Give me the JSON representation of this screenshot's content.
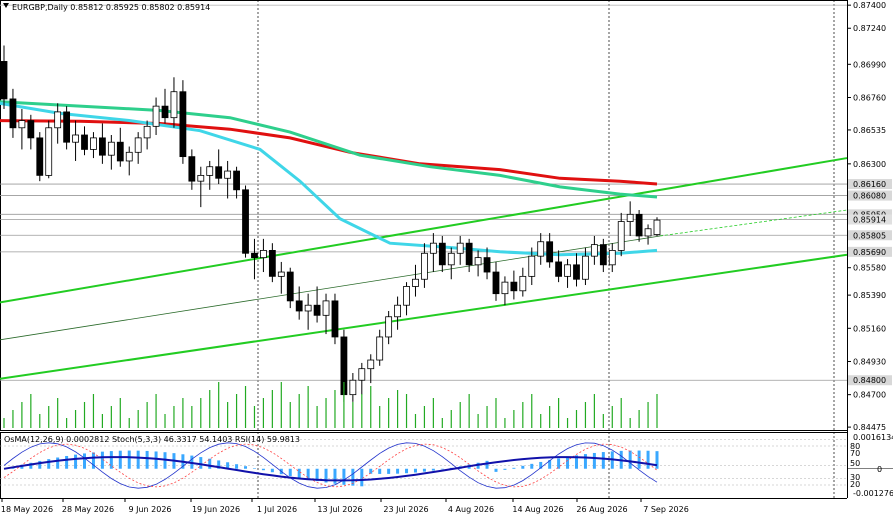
{
  "main_header": "EURGBP,Daily  0.85812 0.85925 0.85802 0.85914",
  "osc_header": "OsMA(12,26,9) 0.0002812  Stoch(5,3,3) 46.3317 54.1403  RSI(14) 59.9813",
  "colors": {
    "bull": "#ffffff",
    "bear": "#000000",
    "ma_red": "#e01010",
    "ma_green": "#2ecf8c",
    "ma_cyan": "#3fd6e8",
    "channel": "#22cc22",
    "volume": "#22aa22",
    "osma_hist": "#3aa8ff",
    "stoch_main": "#2233cc",
    "stoch_signal": "#ff4444",
    "rsi": "#1111aa"
  },
  "chart_data": {
    "type": "candlestick",
    "symbol": "EURGBP",
    "timeframe": "Daily",
    "ylim": [
      0.84455,
      0.87415
    ],
    "price_ticks": [
      "0.87400",
      "0.87240",
      "0.86990",
      "0.86760",
      "0.86535",
      "0.86300",
      "0.85795",
      "0.85580",
      "0.85390",
      "0.85160",
      "0.84930",
      "0.84700",
      "0.84475"
    ],
    "price_markers": [
      {
        "label": "0.86160",
        "value": 0.8616,
        "bg": "#d8d8d8"
      },
      {
        "label": "0.86080",
        "value": 0.8608,
        "bg": "#d8d8d8"
      },
      {
        "label": "0.85950",
        "value": 0.8595,
        "bg": "#d8d8d8"
      },
      {
        "label": "0.85914",
        "value": 0.85914,
        "bg": "#e0e0e0"
      },
      {
        "label": "0.85805",
        "value": 0.85805,
        "bg": "#d8d8d8"
      },
      {
        "label": "0.85690",
        "value": 0.8569,
        "bg": "#d8d8d8"
      },
      {
        "label": "0.84800",
        "value": 0.848,
        "bg": "#d8d8d8"
      }
    ],
    "date_labels": [
      "18 May 2026",
      "28 May 2026",
      "9 Jun 2026",
      "19 Jun 2026",
      "1 Jul 2026",
      "13 Jul 2026",
      "23 Jul 2026",
      "4 Aug 2026",
      "14 Aug 2026",
      "26 Aug 2026",
      "7 Sep 2026"
    ],
    "candles": [
      [
        0.8701,
        0.8712,
        0.8668,
        0.8675
      ],
      [
        0.8675,
        0.8682,
        0.8648,
        0.8655
      ],
      [
        0.8655,
        0.8668,
        0.864,
        0.866
      ],
      [
        0.866,
        0.8664,
        0.864,
        0.8648
      ],
      [
        0.8648,
        0.8652,
        0.8618,
        0.8622
      ],
      [
        0.8622,
        0.866,
        0.862,
        0.8655
      ],
      [
        0.8655,
        0.8672,
        0.8644,
        0.8666
      ],
      [
        0.8666,
        0.867,
        0.864,
        0.8645
      ],
      [
        0.8645,
        0.866,
        0.8632,
        0.865
      ],
      [
        0.865,
        0.8656,
        0.8636,
        0.864
      ],
      [
        0.864,
        0.8652,
        0.8634,
        0.8648
      ],
      [
        0.8648,
        0.8658,
        0.863,
        0.8636
      ],
      [
        0.8636,
        0.865,
        0.8626,
        0.8645
      ],
      [
        0.8645,
        0.8655,
        0.8628,
        0.8632
      ],
      [
        0.8632,
        0.8642,
        0.8622,
        0.8638
      ],
      [
        0.8638,
        0.8652,
        0.863,
        0.8648
      ],
      [
        0.8648,
        0.866,
        0.864,
        0.8656
      ],
      [
        0.8656,
        0.8676,
        0.865,
        0.867
      ],
      [
        0.867,
        0.8682,
        0.8658,
        0.8662
      ],
      [
        0.8662,
        0.869,
        0.8655,
        0.868
      ],
      [
        0.868,
        0.8688,
        0.863,
        0.8635
      ],
      [
        0.8635,
        0.864,
        0.8612,
        0.8618
      ],
      [
        0.8618,
        0.8628,
        0.86,
        0.8622
      ],
      [
        0.8622,
        0.8632,
        0.8612,
        0.8628
      ],
      [
        0.8628,
        0.864,
        0.8616,
        0.862
      ],
      [
        0.862,
        0.8632,
        0.8606,
        0.8625
      ],
      [
        0.8625,
        0.8628,
        0.8606,
        0.8612
      ],
      [
        0.8612,
        0.8615,
        0.8565,
        0.8568
      ],
      [
        0.8568,
        0.8578,
        0.855,
        0.8565
      ],
      [
        0.8565,
        0.8578,
        0.8555,
        0.857
      ],
      [
        0.857,
        0.8575,
        0.8548,
        0.8552
      ],
      [
        0.8552,
        0.8562,
        0.854,
        0.8555
      ],
      [
        0.8555,
        0.8558,
        0.853,
        0.8535
      ],
      [
        0.8535,
        0.8545,
        0.8522,
        0.8528
      ],
      [
        0.8528,
        0.854,
        0.8515,
        0.8532
      ],
      [
        0.8532,
        0.8545,
        0.852,
        0.8525
      ],
      [
        0.8525,
        0.854,
        0.8512,
        0.8535
      ],
      [
        0.8535,
        0.854,
        0.8505,
        0.851
      ],
      [
        0.851,
        0.8515,
        0.8465,
        0.847
      ],
      [
        0.847,
        0.8485,
        0.8465,
        0.848
      ],
      [
        0.848,
        0.8492,
        0.847,
        0.8488
      ],
      [
        0.8488,
        0.8498,
        0.8478,
        0.8494
      ],
      [
        0.8494,
        0.8515,
        0.849,
        0.851
      ],
      [
        0.851,
        0.8528,
        0.8505,
        0.8524
      ],
      [
        0.8524,
        0.8538,
        0.8515,
        0.8532
      ],
      [
        0.8532,
        0.8548,
        0.8525,
        0.8545
      ],
      [
        0.8545,
        0.856,
        0.8538,
        0.855
      ],
      [
        0.855,
        0.8575,
        0.8544,
        0.8568
      ],
      [
        0.8568,
        0.8582,
        0.8555,
        0.8575
      ],
      [
        0.8575,
        0.858,
        0.8555,
        0.856
      ],
      [
        0.856,
        0.8572,
        0.855,
        0.8568
      ],
      [
        0.8568,
        0.858,
        0.856,
        0.8575
      ],
      [
        0.8575,
        0.8578,
        0.8555,
        0.856
      ],
      [
        0.856,
        0.857,
        0.8552,
        0.8565
      ],
      [
        0.8565,
        0.8572,
        0.855,
        0.8555
      ],
      [
        0.8555,
        0.8562,
        0.8535,
        0.854
      ],
      [
        0.854,
        0.8552,
        0.8532,
        0.8548
      ],
      [
        0.8548,
        0.8556,
        0.8536,
        0.8542
      ],
      [
        0.8542,
        0.8558,
        0.8538,
        0.8552
      ],
      [
        0.8552,
        0.8572,
        0.8546,
        0.8566
      ],
      [
        0.8566,
        0.8582,
        0.856,
        0.8576
      ],
      [
        0.8576,
        0.8582,
        0.8558,
        0.8562
      ],
      [
        0.8562,
        0.857,
        0.8548,
        0.8552
      ],
      [
        0.8552,
        0.8564,
        0.8544,
        0.856
      ],
      [
        0.856,
        0.8568,
        0.8545,
        0.855
      ],
      [
        0.855,
        0.8572,
        0.8546,
        0.8566
      ],
      [
        0.8566,
        0.858,
        0.856,
        0.8574
      ],
      [
        0.8574,
        0.8578,
        0.8555,
        0.856
      ],
      [
        0.856,
        0.8575,
        0.8555,
        0.857
      ],
      [
        0.857,
        0.8596,
        0.8566,
        0.859
      ],
      [
        0.859,
        0.8604,
        0.858,
        0.8595
      ],
      [
        0.8595,
        0.8598,
        0.8576,
        0.858
      ],
      [
        0.858,
        0.8588,
        0.8574,
        0.8585
      ],
      [
        0.8581,
        0.8593,
        0.858,
        0.8591
      ]
    ],
    "sma_fast_label": "MA cyan",
    "osc_axis": {
      "top_label": "0.0016134",
      "bottom_label": "-0.0012768",
      "levels": [
        "80",
        "70",
        "50",
        "30",
        "20"
      ]
    }
  }
}
